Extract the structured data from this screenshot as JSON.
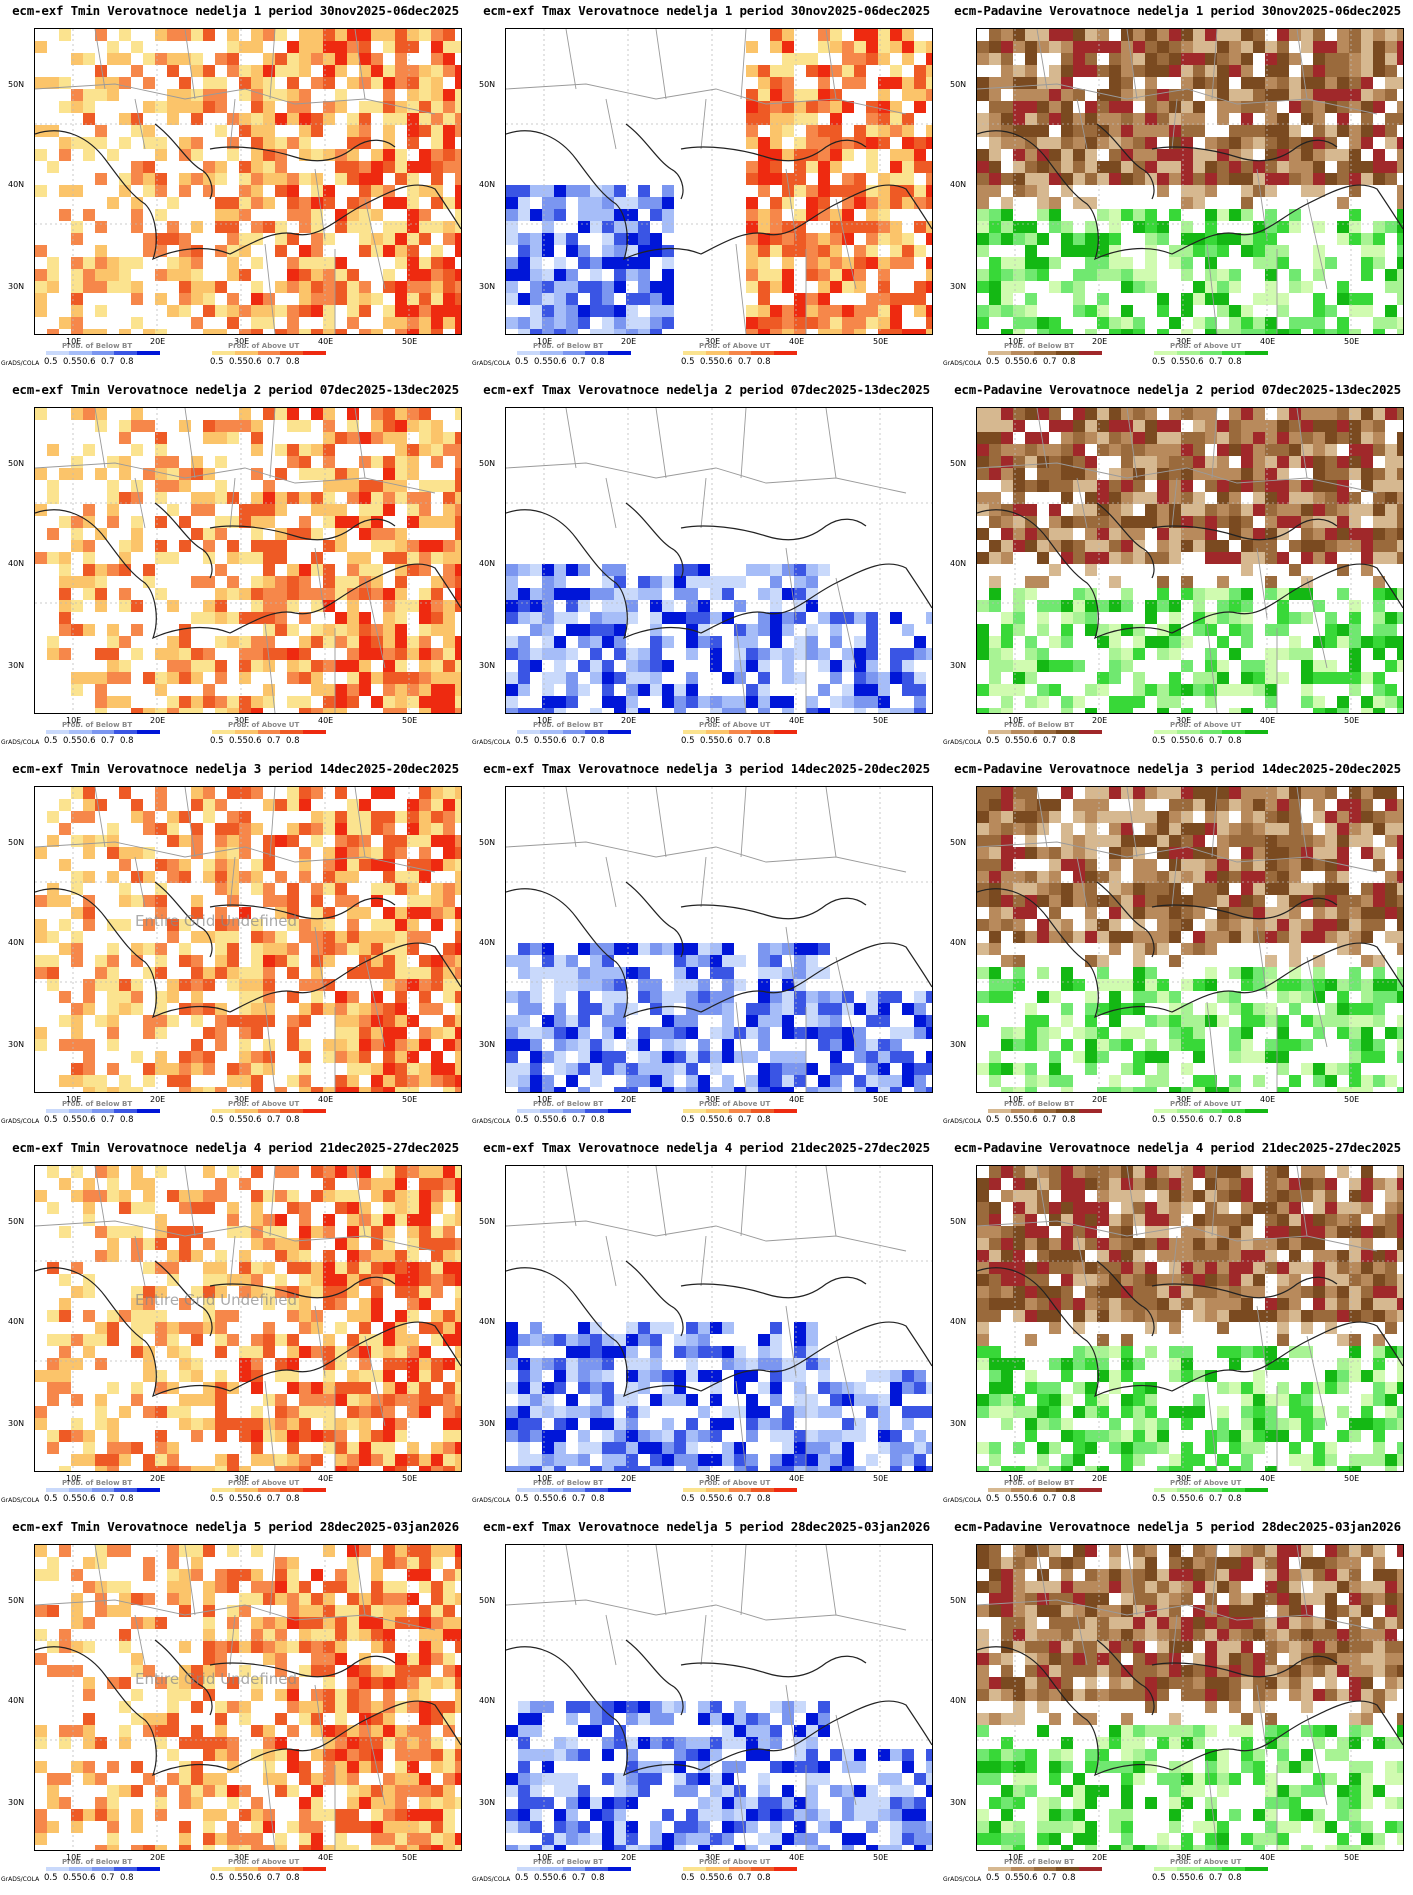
{
  "common": {
    "grads_label": "GrADS/COLA",
    "lat_labels": [
      "50N",
      "40N",
      "30N"
    ],
    "lon_labels": [
      "10E",
      "20E",
      "30E",
      "40E",
      "50E"
    ],
    "below_title": "Prob. of Below BT",
    "above_title": "Prob. of Above UT",
    "legend_ticks": [
      "0.5",
      "0.55",
      "0.6",
      "0.7",
      "0.8"
    ],
    "undefined_text": "Entire Grid Undefined"
  },
  "colors": {
    "blue_scale": [
      "#c9d9fb",
      "#a6bdf8",
      "#7b96f0",
      "#3a55e4",
      "#0016d8"
    ],
    "red_scale": [
      "#fbe38f",
      "#fbc46a",
      "#f6874a",
      "#ee5a25",
      "#ee2a10"
    ],
    "brown_scale": [
      "#d6b890",
      "#b88a5c",
      "#9a6a3c",
      "#7a4a20",
      "#a0282a"
    ],
    "green_scale": [
      "#d0fbb0",
      "#a8f394",
      "#70e870",
      "#38d838",
      "#14b814"
    ]
  },
  "panels": [
    {
      "title": "ecm-exf Tmin Verovatnoce nedelja 1 period 30nov2025-06dec2025",
      "var": "tmin",
      "fill": "red"
    },
    {
      "title": "ecm-exf Tmax Verovatnoce nedelja 1 period 30nov2025-06dec2025",
      "var": "tmax",
      "fill": "mixed"
    },
    {
      "title": "ecm-Padavine Verovatnoce nedelja 1 period 30nov2025-06dec2025",
      "var": "prec",
      "fill": "brown"
    },
    {
      "title": "ecm-exf Tmin Verovatnoce nedelja 2 period 07dec2025-13dec2025",
      "var": "tmin",
      "fill": "red"
    },
    {
      "title": "ecm-exf Tmax Verovatnoce nedelja 2 period 07dec2025-13dec2025",
      "var": "tmax",
      "fill": "blue"
    },
    {
      "title": "ecm-Padavine Verovatnoce nedelja 2 period 07dec2025-13dec2025",
      "var": "prec",
      "fill": "brown"
    },
    {
      "title": "ecm-exf Tmin Verovatnoce nedelja 3 period 14dec2025-20dec2025",
      "var": "tmin",
      "fill": "red"
    },
    {
      "title": "ecm-exf Tmax Verovatnoce nedelja 3 period 14dec2025-20dec2025",
      "var": "tmax",
      "fill": "blue"
    },
    {
      "title": "ecm-Padavine Verovatnoce nedelja 3 period 14dec2025-20dec2025",
      "var": "prec",
      "fill": "brown"
    },
    {
      "title": "ecm-exf Tmin Verovatnoce nedelja 4 period 21dec2025-27dec2025",
      "var": "tmin",
      "fill": "red"
    },
    {
      "title": "ecm-exf Tmax Verovatnoce nedelja 4 period 21dec2025-27dec2025",
      "var": "tmax",
      "fill": "blue"
    },
    {
      "title": "ecm-Padavine Verovatnoce nedelja 4 period 21dec2025-27dec2025",
      "var": "prec",
      "fill": "brown"
    },
    {
      "title": "ecm-exf Tmin Verovatnoce nedelja 5 period 28dec2025-03jan2026",
      "var": "tmin",
      "fill": "red"
    },
    {
      "title": "ecm-exf Tmax Verovatnoce nedelja 5 period 28dec2025-03jan2026",
      "var": "tmax",
      "fill": "blue"
    },
    {
      "title": "ecm-Padavine Verovatnoce nedelja 5 period 28dec2025-03jan2026",
      "var": "prec",
      "fill": "brown"
    }
  ]
}
